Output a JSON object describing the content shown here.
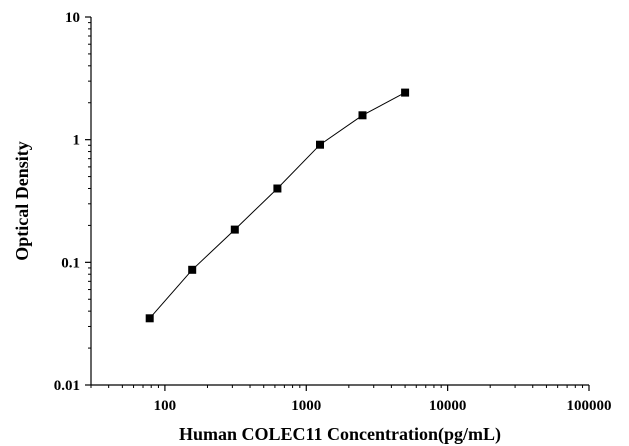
{
  "chart_data": {
    "type": "scatter",
    "title": "",
    "xlabel": "Human COLEC11 Concentration(pg/mL)",
    "ylabel": "Optical Density",
    "x_scale": "log",
    "y_scale": "log",
    "xlim": [
      30,
      100000
    ],
    "ylim": [
      0.01,
      10
    ],
    "x_ticks": [
      100,
      1000,
      10000,
      100000
    ],
    "x_tick_labels": [
      "100",
      "1000",
      "10000",
      "100000"
    ],
    "y_ticks": [
      0.01,
      0.1,
      1,
      10
    ],
    "y_tick_labels": [
      "0.01",
      "0.1",
      "1",
      "10"
    ],
    "grid": false,
    "fit_line": true,
    "series": [
      {
        "x": [
          78,
          156,
          312,
          625,
          1250,
          2500,
          5000
        ],
        "y": [
          0.035,
          0.087,
          0.185,
          0.4,
          0.91,
          1.58,
          2.42
        ]
      }
    ],
    "colors": {
      "marker": "#000000",
      "line": "#000000"
    }
  }
}
